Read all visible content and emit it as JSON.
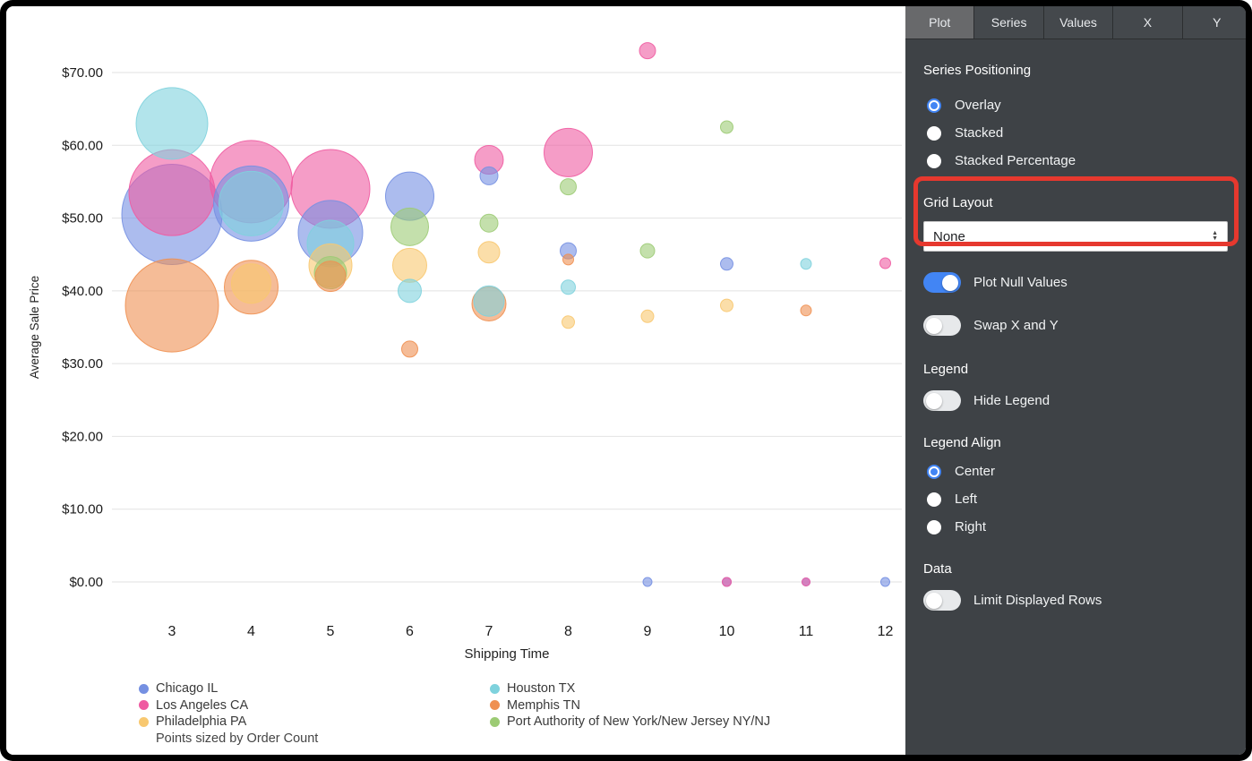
{
  "panel": {
    "tabs": [
      {
        "label": "Plot",
        "active": true
      },
      {
        "label": "Series",
        "active": false
      },
      {
        "label": "Values",
        "active": false
      },
      {
        "label": "X",
        "active": false
      },
      {
        "label": "Y",
        "active": false
      }
    ],
    "series_positioning": {
      "title": "Series Positioning",
      "options": [
        {
          "label": "Overlay",
          "selected": true
        },
        {
          "label": "Stacked",
          "selected": false
        },
        {
          "label": "Stacked Percentage",
          "selected": false
        }
      ]
    },
    "grid_layout": {
      "title": "Grid Layout",
      "value": "None"
    },
    "plot_null_values": {
      "label": "Plot Null Values",
      "on": true
    },
    "swap_x_y": {
      "label": "Swap X and Y",
      "on": false
    },
    "legend_section": {
      "title": "Legend"
    },
    "hide_legend": {
      "label": "Hide Legend",
      "on": false
    },
    "legend_align": {
      "title": "Legend Align",
      "options": [
        {
          "label": "Center",
          "selected": true
        },
        {
          "label": "Left",
          "selected": false
        },
        {
          "label": "Right",
          "selected": false
        }
      ]
    },
    "data_section": {
      "title": "Data"
    },
    "limit_rows": {
      "label": "Limit Displayed Rows",
      "on": false
    },
    "accent_color": "#4285f4"
  },
  "annotation": {
    "color": "#e6382e"
  },
  "chart_data": {
    "type": "scatter",
    "title": "",
    "xlabel": "Shipping Time",
    "ylabel": "Average Sale Price",
    "xlim": [
      2.5,
      12.5
    ],
    "ylim": [
      0,
      75
    ],
    "xticks": [
      3,
      4,
      5,
      6,
      7,
      8,
      9,
      10,
      11,
      12
    ],
    "yticks": [
      0,
      10,
      20,
      30,
      40,
      50,
      60,
      70
    ],
    "ytick_labels": [
      "$0.00",
      "$10.00",
      "$20.00",
      "$30.00",
      "$40.00",
      "$50.00",
      "$60.00",
      "$70.00"
    ],
    "grid": true,
    "legend_position": "bottom",
    "size_note": "Points sized by Order Count",
    "series": [
      {
        "name": "Chicago IL",
        "color": "#7590e2",
        "points": [
          [
            3,
            50.5,
            56
          ],
          [
            4,
            52,
            42
          ],
          [
            5,
            48,
            36
          ],
          [
            6,
            53,
            27
          ],
          [
            7,
            55.8,
            10
          ],
          [
            8,
            45.5,
            9
          ],
          [
            9,
            0,
            5
          ],
          [
            10,
            43.7,
            7
          ],
          [
            10,
            0,
            5
          ],
          [
            11,
            0,
            4.5
          ],
          [
            12,
            0,
            5
          ]
        ]
      },
      {
        "name": "Los Angeles CA",
        "color": "#ef5ba1",
        "points": [
          [
            3,
            53.5,
            48
          ],
          [
            4,
            55,
            46
          ],
          [
            5,
            54,
            44
          ],
          [
            7,
            58,
            16
          ],
          [
            8,
            59,
            27
          ],
          [
            9,
            73,
            9
          ],
          [
            10,
            0,
            5
          ],
          [
            11,
            0,
            4.5
          ],
          [
            12,
            43.8,
            6
          ]
        ]
      },
      {
        "name": "Philadelphia PA",
        "color": "#f8c870",
        "points": [
          [
            4,
            41,
            22
          ],
          [
            5,
            43.5,
            24
          ],
          [
            6,
            43.5,
            19
          ],
          [
            7,
            45.3,
            12
          ],
          [
            8,
            35.7,
            7
          ],
          [
            9,
            36.5,
            7
          ],
          [
            10,
            38,
            7
          ]
        ]
      },
      {
        "name": "Houston TX",
        "color": "#7ed2dd",
        "points": [
          [
            3,
            63,
            40
          ],
          [
            4,
            52,
            36
          ],
          [
            5,
            46.5,
            26
          ],
          [
            6,
            40,
            13
          ],
          [
            7,
            38.6,
            17
          ],
          [
            8,
            40.5,
            8
          ],
          [
            11,
            43.7,
            6
          ]
        ]
      },
      {
        "name": "Memphis TN",
        "color": "#ef9051",
        "points": [
          [
            3,
            38,
            52
          ],
          [
            4,
            40.5,
            30
          ],
          [
            5,
            42,
            17
          ],
          [
            6,
            32,
            9
          ],
          [
            7,
            38.2,
            19
          ],
          [
            8,
            44.3,
            6
          ],
          [
            11,
            37.3,
            6
          ]
        ]
      },
      {
        "name": "Port Authority of New York/New Jersey NY/NJ",
        "color": "#9ccb74",
        "points": [
          [
            5,
            42.5,
            18
          ],
          [
            6,
            48.8,
            21
          ],
          [
            7,
            49.3,
            10
          ],
          [
            8,
            54.3,
            9
          ],
          [
            9,
            45.5,
            8
          ],
          [
            10,
            62.5,
            7
          ]
        ]
      }
    ],
    "legend_columns": [
      [
        "Chicago IL",
        "Los Angeles CA",
        "Philadelphia PA"
      ],
      [
        "Houston TX",
        "Memphis TN",
        "Port Authority of New York/New Jersey NY/NJ"
      ]
    ]
  }
}
